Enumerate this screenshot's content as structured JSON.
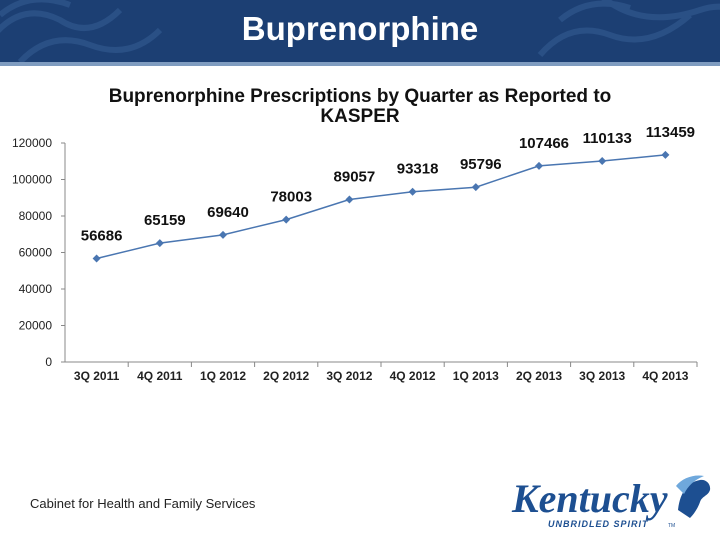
{
  "slide": {
    "title": "Buprenorphine",
    "footer": "Cabinet for Health and Family Services",
    "logo_word": "Kentucky",
    "logo_tagline": "UNBRIDLED SPIRIT",
    "logo_tm": "TM"
  },
  "colors": {
    "banner": "#1c3f73",
    "series": "#4a76b1",
    "logo_blue": "#1d4f91"
  },
  "chart_data": {
    "type": "line",
    "title_line1": "Buprenorphine Prescriptions by Quarter as Reported to",
    "title_line2": "KASPER",
    "categories": [
      "3Q 2011",
      "4Q 2011",
      "1Q 2012",
      "2Q 2012",
      "3Q 2012",
      "4Q 2012",
      "1Q 2013",
      "2Q 2013",
      "3Q 2013",
      "4Q 2013"
    ],
    "values": [
      56686,
      65159,
      69640,
      78003,
      89057,
      93318,
      95796,
      107466,
      110133,
      113459
    ],
    "yticks": [
      0,
      20000,
      40000,
      60000,
      80000,
      100000,
      120000
    ],
    "ylim": [
      0,
      120000
    ],
    "xlabel": "",
    "ylabel": "",
    "grid": false,
    "legend": "none"
  }
}
